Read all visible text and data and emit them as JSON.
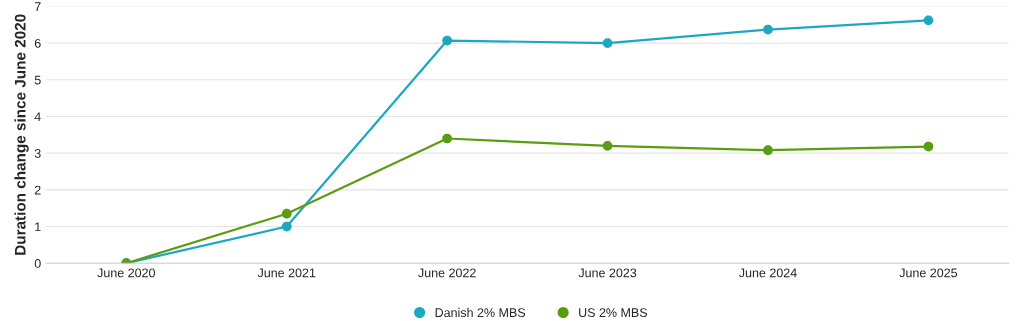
{
  "chart_data": {
    "type": "line",
    "ylabel": "Duration change since June 2020",
    "categories": [
      "June 2020",
      "June 2021",
      "June 2022",
      "June 2023",
      "June 2024",
      "June 2025"
    ],
    "series": [
      {
        "name": "Danish 2% MBS",
        "color": "#1ea7c2",
        "values": [
          0,
          1.0,
          6.07,
          6.0,
          6.37,
          6.62
        ]
      },
      {
        "name": "US 2% MBS",
        "color": "#5a9c12",
        "values": [
          0,
          1.35,
          3.4,
          3.2,
          3.08,
          3.18
        ]
      }
    ],
    "ylim": [
      0,
      7
    ],
    "yticks": [
      0,
      1,
      2,
      3,
      4,
      5,
      6,
      7
    ],
    "grid": "y",
    "legend": "bottom",
    "marker": "circle",
    "line_style": "solid"
  }
}
